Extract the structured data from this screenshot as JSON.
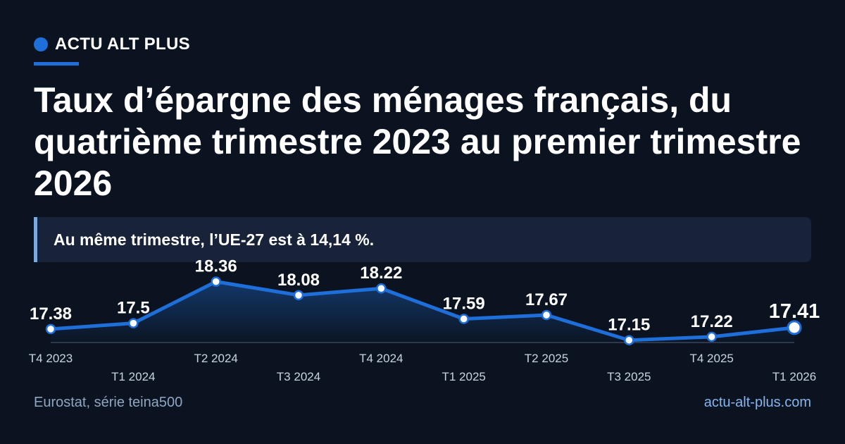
{
  "brand": {
    "name": "ACTU ALT PLUS",
    "color": "#1e6fd9"
  },
  "headline": "Taux d’épargne des ménages français, du quatrième trimestre 2023 au premier trimestre 2026",
  "note": "Au même trimestre, l’UE-27 est à 14,14 %.",
  "footer": {
    "source": "Eurostat, série teina500",
    "site": "actu-alt-plus.com"
  },
  "chart_data": {
    "type": "area",
    "categories": [
      "T4 2023",
      "T1 2024",
      "T2 2024",
      "T3 2024",
      "T4 2024",
      "T1 2025",
      "T2 2025",
      "T3 2025",
      "T4 2025",
      "T1 2026"
    ],
    "values": [
      17.38,
      17.5,
      18.36,
      18.08,
      18.22,
      17.59,
      17.67,
      17.15,
      17.22,
      17.41
    ],
    "value_labels": [
      "17.38",
      "17.5",
      "18.36",
      "18.08",
      "18.22",
      "17.59",
      "17.67",
      "17.15",
      "17.22",
      "17.41"
    ],
    "ylim": [
      17.0,
      18.5
    ],
    "grid": false,
    "legend": "none",
    "line_color": "#1e6fd9",
    "highlight_last": true
  }
}
